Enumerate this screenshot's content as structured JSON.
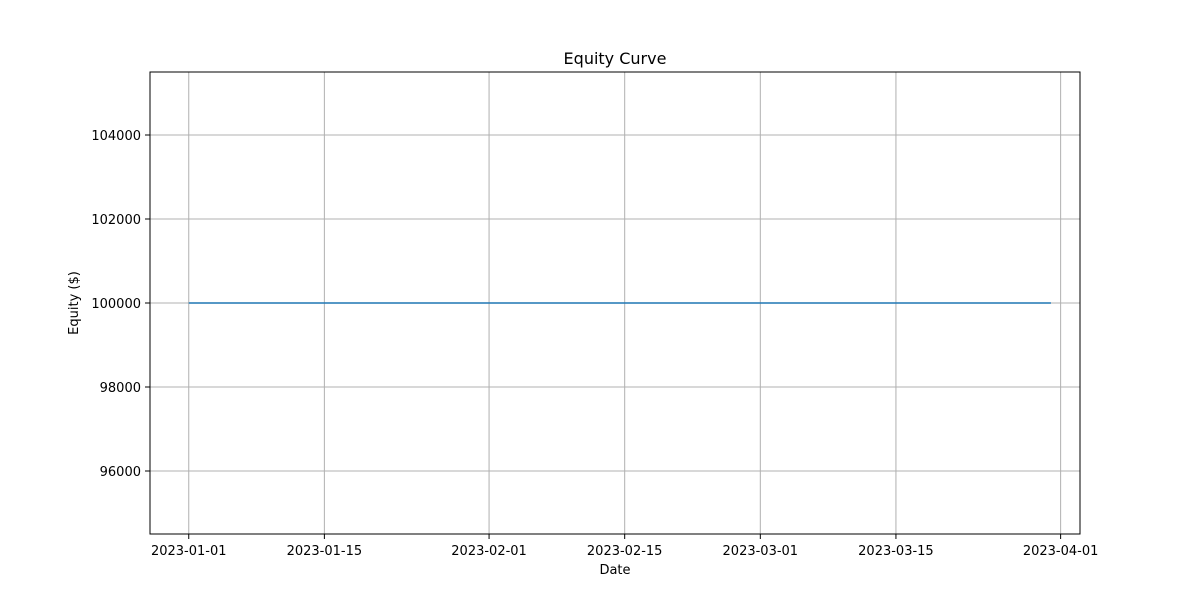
{
  "chart_data": {
    "type": "line",
    "title": "Equity Curve",
    "xlabel": "Date",
    "ylabel": "Equity ($)",
    "x_scale": "date",
    "xlim": [
      "2022-12-28",
      "2023-04-03"
    ],
    "ylim": [
      94500,
      105500
    ],
    "x_ticks": [
      "2023-01-01",
      "2023-01-15",
      "2023-02-01",
      "2023-02-15",
      "2023-03-01",
      "2023-03-15",
      "2023-04-01"
    ],
    "y_ticks": [
      96000,
      98000,
      100000,
      102000,
      104000
    ],
    "grid": true,
    "legend": "none",
    "series": [
      {
        "color": "#1f77b4",
        "x": [
          "2023-01-01",
          "2023-03-31"
        ],
        "y": [
          100000,
          100000
        ]
      }
    ]
  }
}
